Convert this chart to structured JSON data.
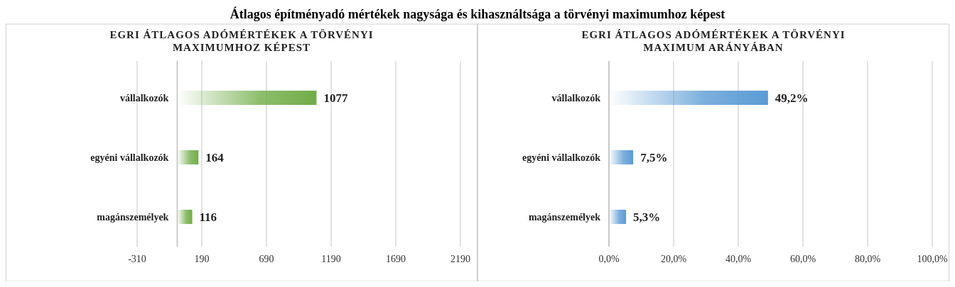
{
  "chart_data": [
    {
      "type": "bar",
      "orientation": "horizontal",
      "title": "EGRI ÁTLAGOS ADÓMÉRTÉKEK A TÖRVÉNYI MAXIMUMHOZ KÉPEST",
      "annotations": [
        "Átlagos építményadó mértékek nagysága és kihasználtsága a törvényi maximumhoz képest"
      ],
      "categories": [
        "vállalkozók",
        "egyéni vállalkozók",
        "magánszemélyek"
      ],
      "values": [
        1077,
        164,
        116
      ],
      "color": "#70ad47",
      "xlim": [
        -310,
        2190
      ],
      "xticks": [
        -310,
        190,
        690,
        1190,
        1690,
        2190
      ],
      "grid": "x",
      "data_labels": true
    },
    {
      "type": "bar",
      "orientation": "horizontal",
      "title": "EGRI ÁTLAGOS ADÓMÉRTÉKEK A TÖRVÉNYI MAXIMUM ARÁNYÁBAN",
      "categories": [
        "vállalkozók",
        "egyéni vállalkozók",
        "magánszemélyek"
      ],
      "values": [
        49.2,
        7.5,
        5.3
      ],
      "value_labels": [
        "49,2%",
        "7,5%",
        "5,3%"
      ],
      "color": "#5b9bd5",
      "xlim": [
        0,
        100
      ],
      "xticks": [
        {
          "value": 0,
          "label": "0,0%"
        },
        {
          "value": 20,
          "label": "20,0%"
        },
        {
          "value": 40,
          "label": "40,0%"
        },
        {
          "value": 60,
          "label": "60,0%"
        },
        {
          "value": 80,
          "label": "80,0%"
        },
        {
          "value": 100,
          "label": "100,0%"
        }
      ],
      "grid": "x"
    }
  ]
}
